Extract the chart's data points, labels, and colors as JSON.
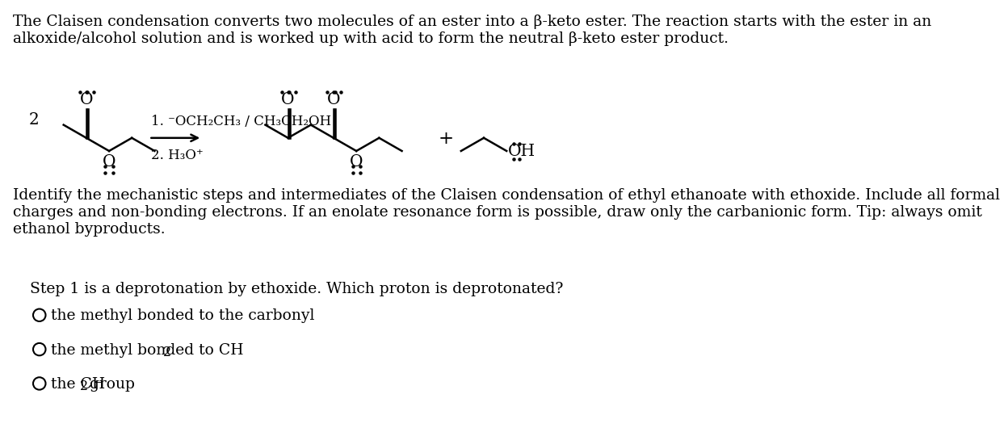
{
  "bg_color": "#ffffff",
  "title_text": "The Claisen condensation converts two molecules of an ester into a β-keto ester. The reaction starts with the ester in an\nalkoxide/alcohol solution and is worked up with acid to form the neutral β-keto ester product.",
  "reaction_conditions_1": "1. ⁻OCH₂CH₃ / CH₃CH₂OH",
  "reaction_conditions_2": "2. H₃O⁺",
  "question_text": "Identify the mechanistic steps and intermediates of the Claisen condensation of ethyl ethanoate with ethoxide. Include all formal\ncharges and non-bonding electrons. If an enolate resonance form is possible, draw only the carbanionic form. Tip: always omit\nethanol byproducts.",
  "step_text": "Step 1 is a deprotonation by ethoxide. Which proton is deprotonated?",
  "option1": "the methyl bonded to the carbonyl",
  "option2_pre": "the methyl bonded to CH",
  "option2_sub": "2",
  "option3_pre": "the CH",
  "option3_sub": "2",
  "option3_post": " group",
  "font_size": 13.5
}
